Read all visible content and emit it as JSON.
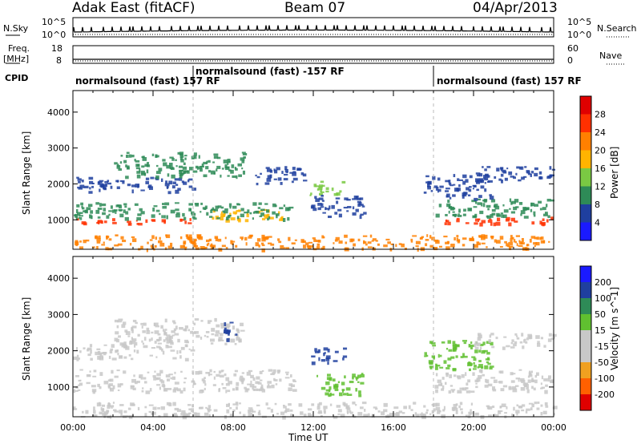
{
  "header": {
    "station": "Adak East (fitACF)",
    "beam": "Beam 07",
    "date": "04/Apr/2013"
  },
  "left_labels": {
    "nsky": "N.Sky",
    "freq_line1": "Freq.",
    "freq_line2": "[MHz]",
    "cpid": "CPID"
  },
  "right_labels": {
    "nsearch": "N.Search",
    "nave": "Nave"
  },
  "noise_panel": {
    "ticks_left": [
      "10^5",
      "10^0"
    ],
    "ticks_right": [
      "10^5",
      "10^0"
    ]
  },
  "freq_panel": {
    "ticks_left": [
      "18",
      "8"
    ],
    "ticks_right": [
      "60",
      "0"
    ]
  },
  "cpid_modes": [
    {
      "label": "normalsound (fast) 157 RF",
      "start_hour": 0,
      "end_hour": 6
    },
    {
      "label": "normalsound (fast) -157 RF",
      "start_hour": 6,
      "end_hour": 18
    },
    {
      "label": "normalsound (fast) 157 RF",
      "start_hour": 18,
      "end_hour": 24
    }
  ],
  "colors": {
    "power": [
      "#1a1aff",
      "#1f3f9f",
      "#2e8b57",
      "#7ac943",
      "#ffb400",
      "#ff8000",
      "#ff3000",
      "#e00000"
    ],
    "velocity": [
      "#e00000",
      "#ff6000",
      "#f0a020",
      "#c8c8c8",
      "#c8c8c8",
      "#60c030",
      "#2e8b57",
      "#1f3f9f",
      "#1a1aff"
    ]
  },
  "chart_data": [
    {
      "type": "heatmap",
      "name": "power",
      "xlabel": "Time UT",
      "ylabel": "Slant Range [km]",
      "zlabel": "Power [dB]",
      "xlim": [
        0,
        24
      ],
      "ylim": [
        180,
        4600
      ],
      "yticks": [
        1000,
        2000,
        3000,
        4000
      ],
      "colorbar_ticks": [
        "4",
        "8",
        "12",
        "16",
        "20",
        "24",
        "28"
      ],
      "bands": [
        {
          "t0": 0.0,
          "t1": 6.5,
          "r0": 900,
          "r1": 1050,
          "level": 28
        },
        {
          "t0": 6.5,
          "t1": 10.5,
          "r0": 1000,
          "r1": 1300,
          "level": 20
        },
        {
          "t0": 0.0,
          "t1": 11.0,
          "r0": 1050,
          "r1": 1500,
          "level": 14
        },
        {
          "t0": 0.0,
          "t1": 6.0,
          "r0": 1800,
          "r1": 2200,
          "level": 10
        },
        {
          "t0": 2.0,
          "t1": 8.5,
          "r0": 2200,
          "r1": 2900,
          "level": 12
        },
        {
          "t0": 9.0,
          "t1": 11.5,
          "r0": 2000,
          "r1": 2500,
          "level": 10
        },
        {
          "t0": 11.8,
          "t1": 13.5,
          "r0": 1700,
          "r1": 2100,
          "level": 18
        },
        {
          "t0": 11.8,
          "t1": 14.5,
          "r0": 1100,
          "r1": 1700,
          "level": 8
        },
        {
          "t0": 18.5,
          "t1": 24.0,
          "r0": 900,
          "r1": 1100,
          "level": 28
        },
        {
          "t0": 18.0,
          "t1": 24.0,
          "r0": 1100,
          "r1": 1600,
          "level": 14
        },
        {
          "t0": 17.5,
          "t1": 21.0,
          "r0": 1600,
          "r1": 2300,
          "level": 10
        },
        {
          "t0": 20.0,
          "t1": 24.0,
          "r0": 2100,
          "r1": 2500,
          "level": 8
        },
        {
          "t0": 0.0,
          "t1": 24.0,
          "r0": 200,
          "r1": 600,
          "level": 24
        }
      ]
    },
    {
      "type": "heatmap",
      "name": "velocity",
      "xlabel": "Time UT",
      "ylabel": "Slant Range [km]",
      "zlabel": "Velocity [m s^-1]",
      "xlim": [
        0,
        24
      ],
      "ylim": [
        180,
        4600
      ],
      "xticks": [
        "00:00",
        "04:00",
        "08:00",
        "12:00",
        "16:00",
        "20:00",
        "00:00"
      ],
      "yticks": [
        1000,
        2000,
        3000,
        4000
      ],
      "colorbar_ticks": [
        "-200",
        "-100",
        "-50",
        "-15",
        "15",
        "50",
        "100",
        "200"
      ],
      "bands": [
        {
          "t0": 0.0,
          "t1": 11.0,
          "r0": 900,
          "r1": 1500,
          "level": 0
        },
        {
          "t0": 0.0,
          "t1": 6.0,
          "r0": 1800,
          "r1": 2200,
          "level": 0
        },
        {
          "t0": 2.0,
          "t1": 8.5,
          "r0": 2200,
          "r1": 2900,
          "level": -30
        },
        {
          "t0": 7.5,
          "t1": 8.3,
          "r0": 2300,
          "r1": 2800,
          "level": 150
        },
        {
          "t0": 11.8,
          "t1": 13.5,
          "r0": 1700,
          "r1": 2100,
          "level": 150
        },
        {
          "t0": 12.0,
          "t1": 14.5,
          "r0": 800,
          "r1": 1400,
          "level": 40
        },
        {
          "t0": 18.0,
          "t1": 24.0,
          "r0": 900,
          "r1": 1500,
          "level": 0
        },
        {
          "t0": 17.5,
          "t1": 21.0,
          "r0": 1500,
          "r1": 2300,
          "level": 40
        },
        {
          "t0": 20.0,
          "t1": 24.0,
          "r0": 2100,
          "r1": 2500,
          "level": 0
        },
        {
          "t0": 0.0,
          "t1": 24.0,
          "r0": 200,
          "r1": 600,
          "level": 0
        }
      ]
    }
  ]
}
